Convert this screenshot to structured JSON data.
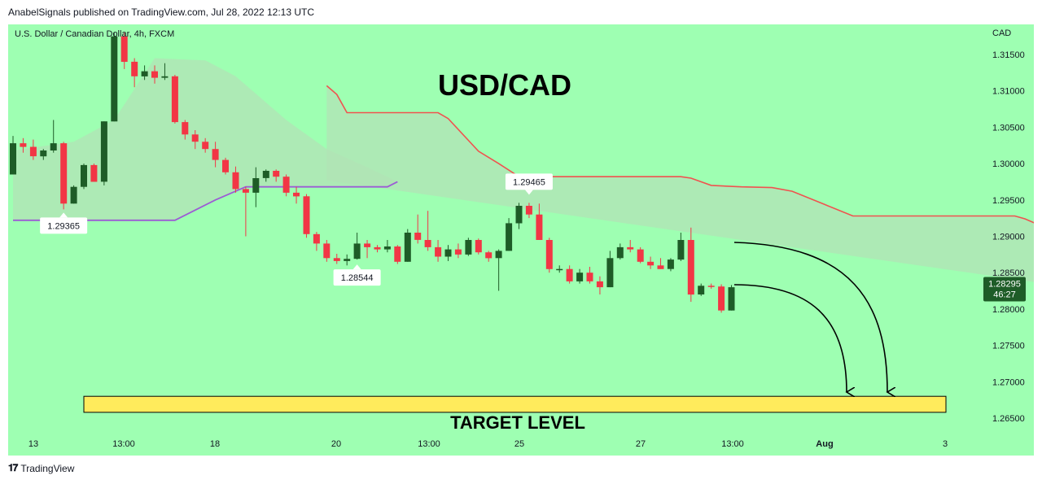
{
  "header": {
    "published": "AnabelSignals published on TradingView.com, Jul 28, 2022 12:13 UTC"
  },
  "footer": {
    "brand": "TradingView",
    "icon": "tradingview-logo-icon"
  },
  "colors": {
    "background": "#9effb2",
    "bull_candle": "#1e5c27",
    "bear_candle": "#f23645",
    "upper_band": "#f0524f",
    "lower_band": "#9c5cd4",
    "band_fill": "#b2e3b5",
    "target_fill": "#ffeb5c",
    "price_tag": "#1e5c27"
  },
  "chart_data": {
    "type": "candlestick",
    "symbol_label": "U.S. Dollar / Canadian Dollar, 4h, FXCM",
    "title": "USD/CAD",
    "currency_label": "CAD",
    "y_ticks": [
      "1.31500",
      "1.31000",
      "1.30500",
      "1.30000",
      "1.29500",
      "1.29000",
      "1.28500",
      "1.28000",
      "1.27500",
      "1.27000",
      "1.26500"
    ],
    "ylim": [
      1.2635,
      1.318
    ],
    "x_ticks": [
      "13",
      "13:00",
      "18",
      "20",
      "13:00",
      "25",
      "27",
      "13:00",
      "Aug",
      "3"
    ],
    "candles": [
      [
        1.2985,
        1.3038,
        1.299,
        1.3028
      ],
      [
        1.3028,
        1.3035,
        1.3015,
        1.3023
      ],
      [
        1.3023,
        1.3033,
        1.3005,
        1.301
      ],
      [
        1.301,
        1.302,
        1.3005,
        1.3018
      ],
      [
        1.3018,
        1.306,
        1.3015,
        1.3028
      ],
      [
        1.3028,
        1.303,
        1.2937,
        1.2945
      ],
      [
        1.2945,
        1.297,
        1.2945,
        1.2968
      ],
      [
        1.2968,
        1.3,
        1.2965,
        1.2998
      ],
      [
        1.2998,
        1.3,
        1.2975,
        1.2975
      ],
      [
        1.2975,
        1.3058,
        1.297,
        1.3058
      ],
      [
        1.3058,
        1.318,
        1.3058,
        1.3175
      ],
      [
        1.3175,
        1.318,
        1.313,
        1.314
      ],
      [
        1.314,
        1.3145,
        1.3105,
        1.312
      ],
      [
        1.312,
        1.3135,
        1.3115,
        1.3127
      ],
      [
        1.3127,
        1.3135,
        1.311,
        1.3118
      ],
      [
        1.3118,
        1.3138,
        1.3115,
        1.312
      ],
      [
        1.312,
        1.3122,
        1.3055,
        1.3057
      ],
      [
        1.3057,
        1.306,
        1.3033,
        1.304
      ],
      [
        1.304,
        1.3046,
        1.302,
        1.303
      ],
      [
        1.303,
        1.3035,
        1.3015,
        1.302
      ],
      [
        1.302,
        1.303,
        1.2995,
        1.3005
      ],
      [
        1.3005,
        1.3008,
        1.2985,
        1.2988
      ],
      [
        1.2988,
        1.2996,
        1.296,
        1.2965
      ],
      [
        1.2965,
        1.2968,
        1.29,
        1.296
      ],
      [
        1.296,
        1.2995,
        1.294,
        1.298
      ],
      [
        1.298,
        1.2992,
        1.2975,
        1.299
      ],
      [
        1.299,
        1.2992,
        1.2975,
        1.2982
      ],
      [
        1.2982,
        1.2985,
        1.2955,
        1.296
      ],
      [
        1.296,
        1.2968,
        1.2945,
        1.2955
      ],
      [
        1.2955,
        1.2958,
        1.2898,
        1.2903
      ],
      [
        1.2903,
        1.2906,
        1.288,
        1.289
      ],
      [
        1.289,
        1.2895,
        1.2865,
        1.287
      ],
      [
        1.287,
        1.2876,
        1.2862,
        1.2866
      ],
      [
        1.2866,
        1.2875,
        1.286,
        1.2869
      ],
      [
        1.2869,
        1.2905,
        1.2868,
        1.289
      ],
      [
        1.289,
        1.2895,
        1.287,
        1.2885
      ],
      [
        1.2885,
        1.2888,
        1.2878,
        1.2882
      ],
      [
        1.2882,
        1.2895,
        1.2878,
        1.2886
      ],
      [
        1.2886,
        1.2888,
        1.2862,
        1.2865
      ],
      [
        1.2865,
        1.291,
        1.2865,
        1.2905
      ],
      [
        1.2905,
        1.293,
        1.289,
        1.2895
      ],
      [
        1.2895,
        1.2935,
        1.288,
        1.2885
      ],
      [
        1.2885,
        1.2895,
        1.2865,
        1.2872
      ],
      [
        1.2872,
        1.2888,
        1.2866,
        1.2882
      ],
      [
        1.2882,
        1.289,
        1.287,
        1.2875
      ],
      [
        1.2875,
        1.2898,
        1.2873,
        1.2895
      ],
      [
        1.2895,
        1.2897,
        1.2875,
        1.2878
      ],
      [
        1.2878,
        1.288,
        1.2865,
        1.287
      ],
      [
        1.287,
        1.2882,
        1.2825,
        1.288
      ],
      [
        1.288,
        1.2925,
        1.288,
        1.2918
      ],
      [
        1.2918,
        1.2946,
        1.291,
        1.2942
      ],
      [
        1.2942,
        1.2946,
        1.2925,
        1.293
      ],
      [
        1.293,
        1.2945,
        1.2895,
        1.2895
      ],
      [
        1.2895,
        1.2898,
        1.285,
        1.2855
      ],
      [
        1.2855,
        1.286,
        1.285,
        1.2855
      ],
      [
        1.2855,
        1.286,
        1.2835,
        1.2838
      ],
      [
        1.2838,
        1.2855,
        1.2835,
        1.285
      ],
      [
        1.285,
        1.2858,
        1.2835,
        1.2838
      ],
      [
        1.2838,
        1.2845,
        1.282,
        1.283
      ],
      [
        1.283,
        1.288,
        1.283,
        1.287
      ],
      [
        1.287,
        1.289,
        1.2868,
        1.2885
      ],
      [
        1.2885,
        1.2895,
        1.2878,
        1.2882
      ],
      [
        1.2882,
        1.2885,
        1.2863,
        1.2865
      ],
      [
        1.2865,
        1.2872,
        1.2855,
        1.286
      ],
      [
        1.286,
        1.287,
        1.2855,
        1.2855
      ],
      [
        1.2855,
        1.287,
        1.2852,
        1.2868
      ],
      [
        1.2868,
        1.2905,
        1.2866,
        1.2895
      ],
      [
        1.2895,
        1.2912,
        1.281,
        1.282
      ],
      [
        1.282,
        1.2835,
        1.2818,
        1.2832
      ],
      [
        1.2832,
        1.2835,
        1.2828,
        1.2831
      ],
      [
        1.2831,
        1.2834,
        1.2795,
        1.2798
      ],
      [
        1.2798,
        1.2833,
        1.2798,
        1.283
      ]
    ],
    "upper_band": [
      [
        31,
        1.3107
      ],
      [
        32,
        1.3095
      ],
      [
        33,
        1.307
      ],
      [
        42,
        1.307
      ],
      [
        43,
        1.3062
      ],
      [
        46,
        1.3017
      ],
      [
        48,
        1.3
      ],
      [
        50,
        1.2982
      ],
      [
        66,
        1.2982
      ],
      [
        67,
        1.298
      ],
      [
        69,
        1.297
      ],
      [
        72,
        1.2968
      ],
      [
        75,
        1.2967
      ],
      [
        77,
        1.2962
      ],
      [
        80,
        1.2945
      ],
      [
        83,
        1.2928
      ],
      [
        99,
        1.2928
      ],
      [
        100,
        1.2924
      ],
      [
        101,
        1.2918
      ],
      [
        103,
        1.2918
      ]
    ],
    "lower_band": [
      [
        0,
        1.2922
      ],
      [
        16,
        1.2922
      ],
      [
        20,
        1.295
      ],
      [
        23,
        1.2968
      ],
      [
        37,
        1.2968
      ],
      [
        38,
        1.2975
      ]
    ],
    "band_fill_upper": [
      [
        0,
        1.3018
      ],
      [
        6,
        1.303
      ],
      [
        10,
        1.306
      ],
      [
        14,
        1.3145
      ],
      [
        19,
        1.3142
      ],
      [
        22,
        1.312
      ],
      [
        27,
        1.306
      ],
      [
        31,
        1.302
      ],
      [
        35,
        1.2995
      ],
      [
        38,
        1.2975
      ]
    ],
    "band_fill_lower": [
      [
        0,
        1.2922
      ],
      [
        16,
        1.2922
      ],
      [
        20,
        1.295
      ],
      [
        23,
        1.2968
      ],
      [
        37,
        1.2968
      ],
      [
        38,
        1.2975
      ]
    ],
    "price_labels": [
      {
        "text": "1.29365",
        "pointer": "up"
      },
      {
        "text": "1.28544",
        "pointer": "up"
      },
      {
        "text": "1.29465",
        "pointer": "down"
      }
    ],
    "target_level": {
      "label": "TARGET LEVEL",
      "low": 1.2658,
      "high": 1.268
    },
    "current_price": {
      "value": "1.28295",
      "countdown": "46:27"
    }
  }
}
